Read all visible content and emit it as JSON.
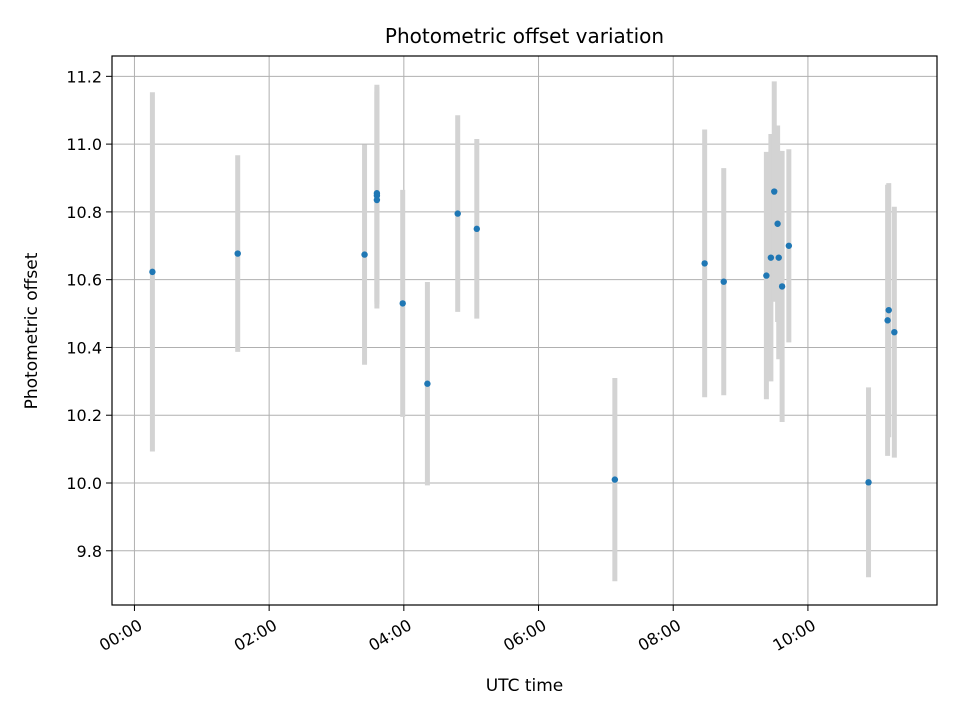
{
  "chart_data": {
    "type": "scatter",
    "title": "Photometric offset variation",
    "xlabel": "UTC time",
    "ylabel": "Photometric offset",
    "x_unit": "UTC time (HH:MM)",
    "xlim": [
      "23:40",
      "11:55"
    ],
    "ylim": [
      9.64,
      11.26
    ],
    "x_ticks": [
      "00:00",
      "02:00",
      "04:00",
      "06:00",
      "08:00",
      "10:00"
    ],
    "y_ticks": [
      "9.8",
      "10.0",
      "10.2",
      "10.4",
      "10.6",
      "10.8",
      "11.0",
      "11.2"
    ],
    "grid": true,
    "colors": {
      "point": "#1f77b4",
      "errorbar": "#d3d3d3",
      "grid": "#b0b0b0",
      "axis": "#000000"
    },
    "points": [
      {
        "x": "00:16",
        "y": 10.623,
        "err": 0.53
      },
      {
        "x": "01:32",
        "y": 10.677,
        "err": 0.29
      },
      {
        "x": "03:25",
        "y": 10.674,
        "err": 0.325
      },
      {
        "x": "03:36",
        "y": 10.855,
        "err": 0.32
      },
      {
        "x": "03:36",
        "y": 10.848,
        "err": 0.32
      },
      {
        "x": "03:36",
        "y": 10.835,
        "err": 0.32
      },
      {
        "x": "03:59",
        "y": 10.53,
        "err": 0.335
      },
      {
        "x": "04:21",
        "y": 10.293,
        "err": 0.3
      },
      {
        "x": "04:48",
        "y": 10.795,
        "err": 0.29
      },
      {
        "x": "05:05",
        "y": 10.75,
        "err": 0.265
      },
      {
        "x": "07:08",
        "y": 10.01,
        "err": 0.3
      },
      {
        "x": "08:28",
        "y": 10.648,
        "err": 0.395
      },
      {
        "x": "08:45",
        "y": 10.594,
        "err": 0.335
      },
      {
        "x": "09:23",
        "y": 10.612,
        "err": 0.365
      },
      {
        "x": "09:27",
        "y": 10.665,
        "err": 0.365
      },
      {
        "x": "09:30",
        "y": 10.86,
        "err": 0.325
      },
      {
        "x": "09:33",
        "y": 10.765,
        "err": 0.29
      },
      {
        "x": "09:34",
        "y": 10.665,
        "err": 0.3
      },
      {
        "x": "09:37",
        "y": 10.58,
        "err": 0.4
      },
      {
        "x": "09:43",
        "y": 10.7,
        "err": 0.285
      },
      {
        "x": "10:54",
        "y": 10.002,
        "err": 0.28
      },
      {
        "x": "11:11",
        "y": 10.48,
        "err": 0.4
      },
      {
        "x": "11:12",
        "y": 10.51,
        "err": 0.375
      },
      {
        "x": "11:17",
        "y": 10.445,
        "err": 0.37
      }
    ]
  }
}
